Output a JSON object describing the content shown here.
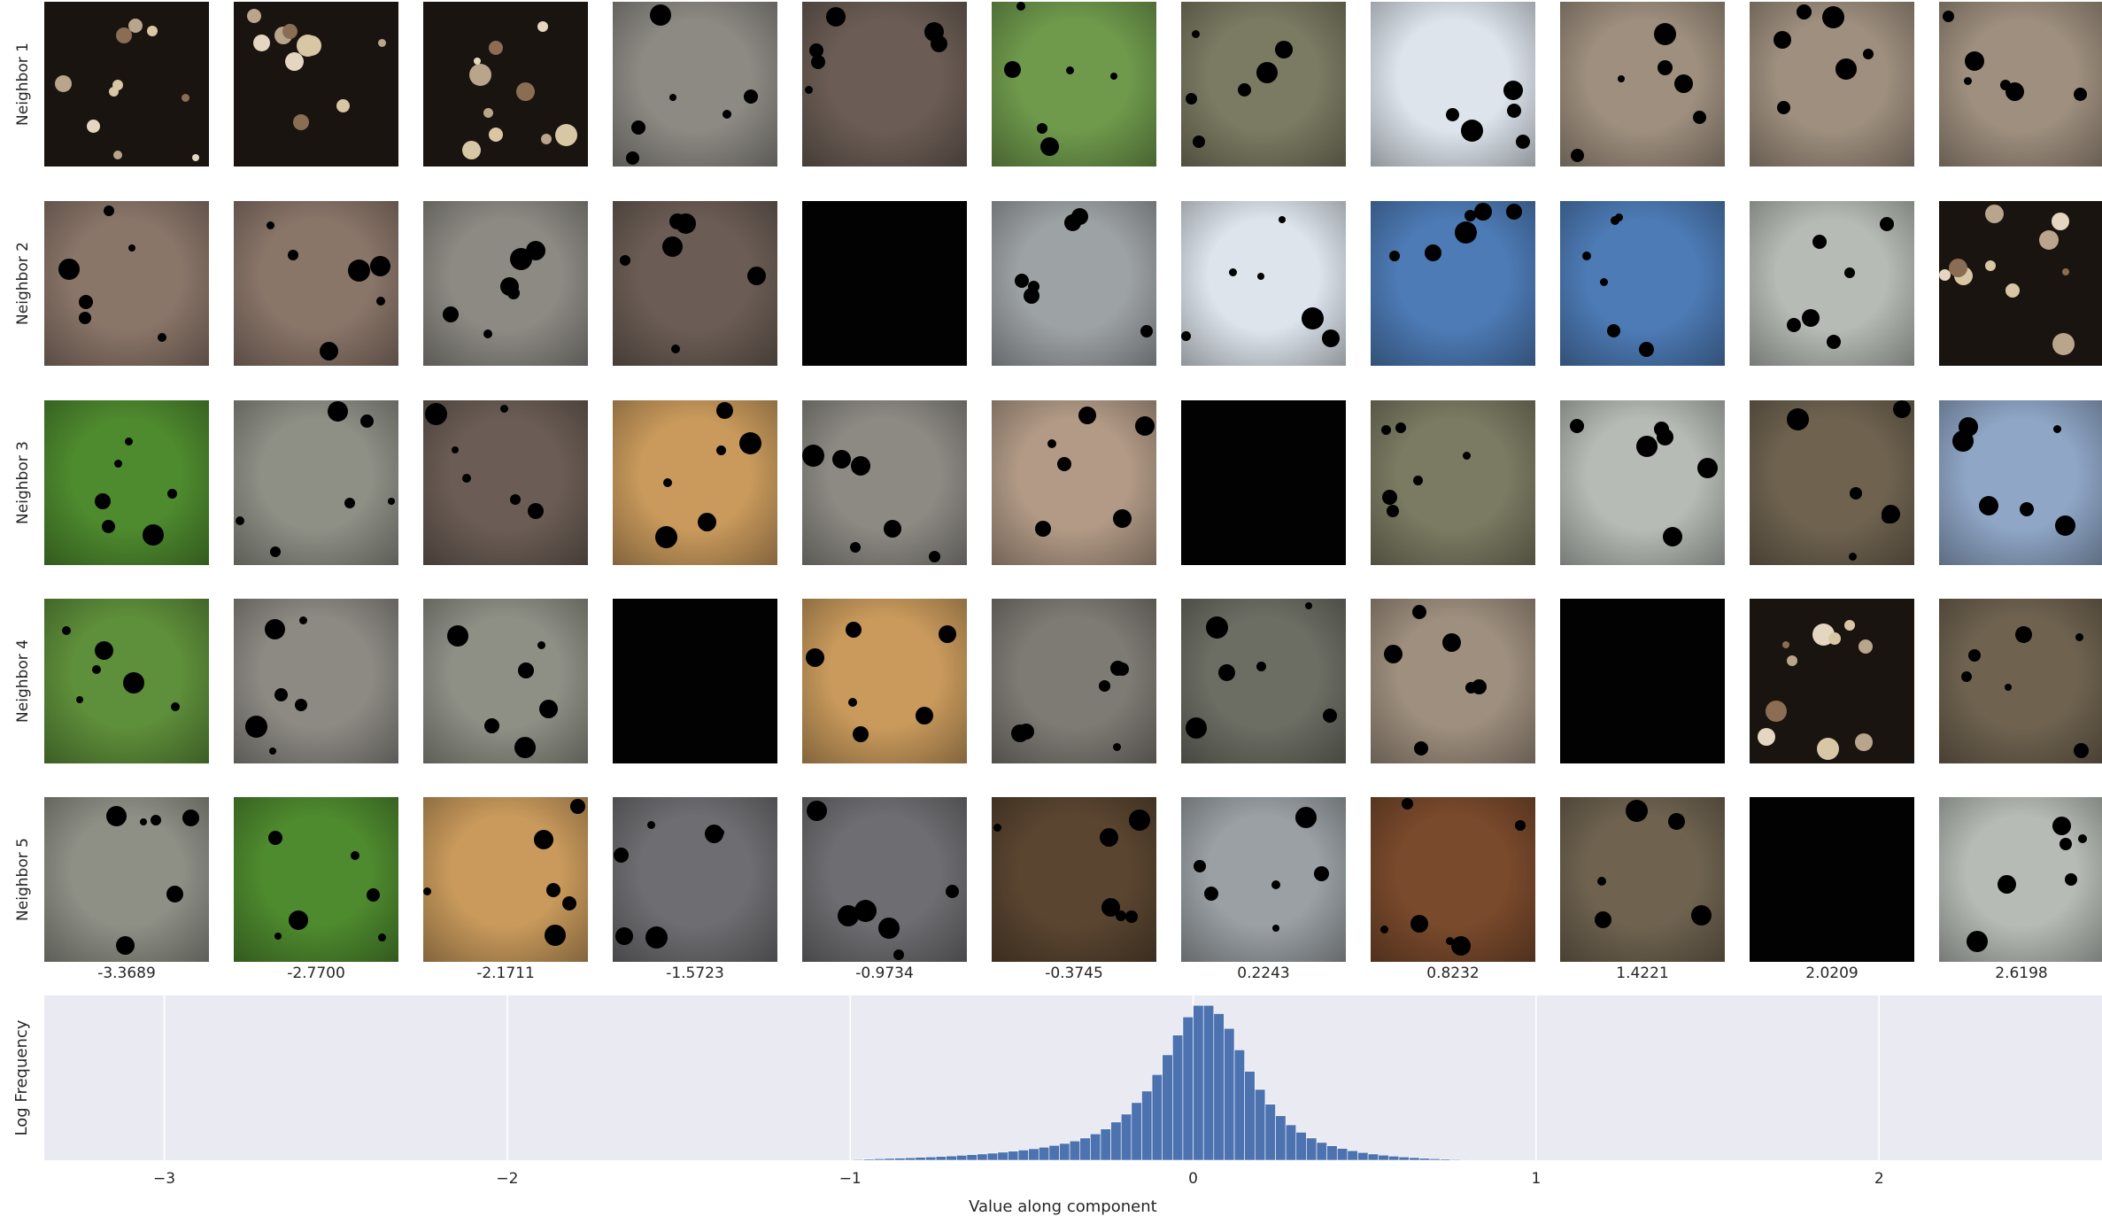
{
  "rows": [
    "Neighbor 1",
    "Neighbor 2",
    "Neighbor 3",
    "Neighbor 4",
    "Neighbor 5"
  ],
  "columns": [
    "-3.3689",
    "-2.7700",
    "-2.1711",
    "-1.5723",
    "-0.9734",
    "-0.3745",
    "0.2243",
    "0.8232",
    "1.4221",
    "2.0209",
    "2.6198"
  ],
  "thumbnails": [
    [
      "dark-masked",
      "dark-masked",
      "dark-masked",
      "green-beetle",
      "flag-wheelchair",
      "dog-standing",
      "grey-dog",
      "pelican",
      "black-grouse",
      "black-grouse",
      "black-grouse"
    ],
    [
      "street-scene",
      "street-scene",
      "green-beetle",
      "flag-wheelchair",
      "black",
      "walkers",
      "pelican",
      "temple",
      "temple",
      "sandpiper",
      "dark-masked"
    ],
    [
      "green-insect",
      "park-people",
      "flag-wheelchair",
      "man-spray",
      "green-beetle",
      "dog-sweater",
      "black",
      "grey-dog",
      "sandpiper",
      "goose",
      "building"
    ],
    [
      "leaf-nest",
      "green-beetle",
      "park-people",
      "black",
      "man-spray",
      "banjo-man",
      "puppy",
      "black-grouse",
      "black",
      "dark-masked",
      "goose"
    ],
    [
      "park-people",
      "green-insect",
      "man-spray",
      "musicians",
      "musicians",
      "grill",
      "elephant",
      "pheasant",
      "goose",
      "black",
      "sandpiper"
    ]
  ],
  "colors": {
    "dark-masked": "#1a1410",
    "green-beetle": "#8d8a84",
    "flag-wheelchair": "#6b5d55",
    "dog-standing": "#6f9a4c",
    "grey-dog": "#7b7a62",
    "pelican": "#dde4ec",
    "black-grouse": "#9e8f7e",
    "street-scene": "#8a7569",
    "black": "#020202",
    "walkers": "#9da2a5",
    "temple": "#4d7bb6",
    "sandpiper": "#b6bbb5",
    "green-insect": "#4e8a2e",
    "park-people": "#8e9086",
    "man-spray": "#c99a5c",
    "dog-sweater": "#b29a86",
    "goose": "#6f6350",
    "building": "#8fa6c6",
    "leaf-nest": "#5e8f3a",
    "banjo-man": "#7e7a74",
    "puppy": "#6c6e64",
    "musicians": "#6e6e72",
    "grill": "#5a4530",
    "elephant": "#9aa0a4",
    "pheasant": "#7a4a2c",
    "hist_bar": "#4c72b0",
    "hist_bg": "#eaeaf2",
    "grid": "#ffffff"
  },
  "chart_data": {
    "type": "bar",
    "ylabel": "Log Frequency",
    "xlabel": "Value along component",
    "xlim": [
      -3.35,
      2.65
    ],
    "xticks": [
      -3,
      -2,
      -1,
      0,
      1,
      2
    ],
    "xtick_labels": [
      "−3",
      "−2",
      "−1",
      "0",
      "1",
      "2"
    ],
    "grid": true,
    "bin_width": 0.03,
    "bins": [
      {
        "x": -0.975,
        "y": 0.005
      },
      {
        "x": -0.945,
        "y": 0.007
      },
      {
        "x": -0.915,
        "y": 0.009
      },
      {
        "x": -0.885,
        "y": 0.011
      },
      {
        "x": -0.855,
        "y": 0.013
      },
      {
        "x": -0.825,
        "y": 0.015
      },
      {
        "x": -0.795,
        "y": 0.018
      },
      {
        "x": -0.765,
        "y": 0.02
      },
      {
        "x": -0.735,
        "y": 0.023
      },
      {
        "x": -0.705,
        "y": 0.026
      },
      {
        "x": -0.675,
        "y": 0.03
      },
      {
        "x": -0.645,
        "y": 0.034
      },
      {
        "x": -0.615,
        "y": 0.038
      },
      {
        "x": -0.585,
        "y": 0.043
      },
      {
        "x": -0.555,
        "y": 0.049
      },
      {
        "x": -0.525,
        "y": 0.055
      },
      {
        "x": -0.495,
        "y": 0.062
      },
      {
        "x": -0.465,
        "y": 0.07
      },
      {
        "x": -0.435,
        "y": 0.079
      },
      {
        "x": -0.405,
        "y": 0.09
      },
      {
        "x": -0.375,
        "y": 0.102
      },
      {
        "x": -0.345,
        "y": 0.117
      },
      {
        "x": -0.315,
        "y": 0.135
      },
      {
        "x": -0.285,
        "y": 0.16
      },
      {
        "x": -0.255,
        "y": 0.19
      },
      {
        "x": -0.225,
        "y": 0.232
      },
      {
        "x": -0.195,
        "y": 0.28
      },
      {
        "x": -0.165,
        "y": 0.35
      },
      {
        "x": -0.135,
        "y": 0.42
      },
      {
        "x": -0.105,
        "y": 0.52
      },
      {
        "x": -0.075,
        "y": 0.64
      },
      {
        "x": -0.045,
        "y": 0.76
      },
      {
        "x": -0.015,
        "y": 0.87
      },
      {
        "x": 0.015,
        "y": 0.94
      },
      {
        "x": 0.045,
        "y": 0.94
      },
      {
        "x": 0.075,
        "y": 0.89
      },
      {
        "x": 0.105,
        "y": 0.8
      },
      {
        "x": 0.135,
        "y": 0.67
      },
      {
        "x": 0.165,
        "y": 0.54
      },
      {
        "x": 0.195,
        "y": 0.43
      },
      {
        "x": 0.225,
        "y": 0.34
      },
      {
        "x": 0.255,
        "y": 0.27
      },
      {
        "x": 0.285,
        "y": 0.215
      },
      {
        "x": 0.315,
        "y": 0.17
      },
      {
        "x": 0.345,
        "y": 0.135
      },
      {
        "x": 0.375,
        "y": 0.108
      },
      {
        "x": 0.405,
        "y": 0.088
      },
      {
        "x": 0.435,
        "y": 0.072
      },
      {
        "x": 0.465,
        "y": 0.058
      },
      {
        "x": 0.495,
        "y": 0.047
      },
      {
        "x": 0.525,
        "y": 0.038
      },
      {
        "x": 0.555,
        "y": 0.031
      },
      {
        "x": 0.585,
        "y": 0.025
      },
      {
        "x": 0.615,
        "y": 0.02
      },
      {
        "x": 0.645,
        "y": 0.016
      },
      {
        "x": 0.675,
        "y": 0.012
      },
      {
        "x": 0.705,
        "y": 0.009
      },
      {
        "x": 0.735,
        "y": 0.007
      },
      {
        "x": 0.765,
        "y": 0.005
      },
      {
        "x": 0.795,
        "y": 0.004
      }
    ]
  }
}
